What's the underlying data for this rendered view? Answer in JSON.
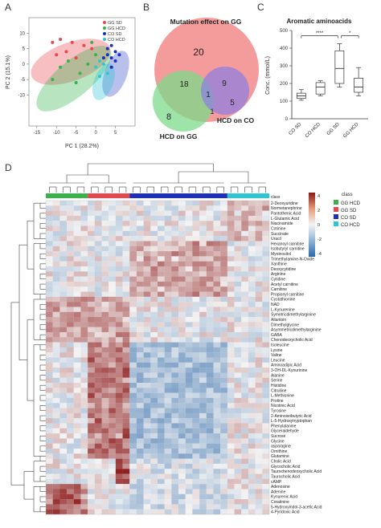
{
  "figure": {
    "panel_labels": [
      "A",
      "B",
      "C",
      "D"
    ]
  },
  "colors": {
    "gg_sd": "#e8484d",
    "gg_hcd": "#37b34a",
    "co_sd": "#1c2fbf",
    "co_hcd": "#2cc7d3",
    "venn_gg": "#f28a8a",
    "venn_hcd_gg": "#7ed98a",
    "venn_hcd_co": "#8a7de6",
    "heat_low": "#2d68a8",
    "heat_mid": "#f4f4f4",
    "heat_high": "#8c1717",
    "box_stroke": "#333333"
  },
  "chart_data": [
    {
      "type": "scatter",
      "panel": "A",
      "xlabel": "PC 1 (28.2%)",
      "ylabel": "PC 2 (15.1%)",
      "xlim": [
        -17,
        10
      ],
      "ylim": [
        -20,
        15
      ],
      "x_ticks": [
        "-15",
        "-10",
        "-5",
        "0",
        "5"
      ],
      "y_ticks": [
        "-10",
        "-5",
        "0",
        "5",
        "10"
      ],
      "legend": [
        "GG SD",
        "GG HCD",
        "CO SD",
        "CO HCD"
      ],
      "legend_position": "top-right",
      "series": [
        {
          "name": "GG SD",
          "points": [
            [
              -11,
              7
            ],
            [
              -9,
              8
            ],
            [
              -7.5,
              4
            ],
            [
              -5,
              2
            ],
            [
              -3,
              6
            ],
            [
              -1,
              5
            ],
            [
              -10,
              3
            ],
            [
              -6,
              7
            ]
          ]
        },
        {
          "name": "GG HCD",
          "points": [
            [
              -11,
              -5
            ],
            [
              -9,
              -1
            ],
            [
              -7,
              1
            ],
            [
              -4,
              -3
            ],
            [
              -1,
              7
            ],
            [
              0,
              3
            ],
            [
              -5,
              -6
            ],
            [
              -2,
              0
            ]
          ]
        },
        {
          "name": "CO SD",
          "points": [
            [
              3,
              5
            ],
            [
              4,
              6
            ],
            [
              5,
              4
            ],
            [
              4,
              2
            ],
            [
              5,
              1
            ],
            [
              3,
              3
            ],
            [
              6,
              3
            ],
            [
              4,
              -1
            ],
            [
              2,
              2
            ]
          ]
        },
        {
          "name": "CO HCD",
          "points": [
            [
              0,
              -1
            ],
            [
              1,
              -4
            ],
            [
              2,
              0
            ],
            [
              3,
              -3
            ],
            [
              1,
              1
            ]
          ]
        }
      ]
    },
    {
      "type": "venn",
      "panel": "B",
      "sets": [
        {
          "name": "Mutation effect on GG",
          "only": "20"
        },
        {
          "name": "HCD on GG",
          "only": "8"
        },
        {
          "name": "HCD on CO",
          "only": "5"
        }
      ],
      "regions": {
        "gg_and_hcd_gg": "18",
        "gg_and_hcd_co": "9",
        "all_three": "1",
        "hcd_gg_and_hcd_co": "1"
      }
    },
    {
      "type": "box",
      "panel": "C",
      "title": "Aromatic aminoacids",
      "ylabel": "Conc. (mmol/L)",
      "ylim": [
        0,
        500
      ],
      "y_ticks": [
        "0",
        "100",
        "200",
        "300",
        "400",
        "500"
      ],
      "categories": [
        "CO SD",
        "CO HCD",
        "GG SD",
        "GG HCD"
      ],
      "boxes": [
        {
          "name": "CO SD",
          "min": 105,
          "q1": 115,
          "median": 130,
          "q3": 145,
          "max": 165
        },
        {
          "name": "CO HCD",
          "min": 130,
          "q1": 140,
          "median": 180,
          "q3": 205,
          "max": 215
        },
        {
          "name": "GG SD",
          "min": 180,
          "q1": 200,
          "median": 285,
          "q3": 385,
          "max": 425
        },
        {
          "name": "GG HCD",
          "min": 130,
          "q1": 150,
          "median": 180,
          "q3": 230,
          "max": 290
        }
      ],
      "significance": [
        {
          "from": "CO SD",
          "to": "GG SD",
          "label": "****"
        },
        {
          "from": "GG SD",
          "to": "GG HCD",
          "label": "*"
        }
      ]
    },
    {
      "type": "heatmap",
      "panel": "D",
      "class_label": "class",
      "legend": [
        "GG HCD",
        "GG SD",
        "CO SD",
        "CO HCD"
      ],
      "scale_ticks": [
        "4",
        "2",
        "0",
        "-2",
        "-4"
      ],
      "column_groups": [
        {
          "name": "GG HCD",
          "count": 6
        },
        {
          "name": "GG SD",
          "count": 6
        },
        {
          "name": "CO SD",
          "count": 14
        },
        {
          "name": "CO HCD",
          "count": 6
        }
      ],
      "rows": [
        "2-Deoxyuridine",
        "Normetanephrine",
        "Pantothenic Acid",
        "L-Glutamic Acid",
        "Niacinamide",
        "Cotinine",
        "Succinate",
        "Uracil",
        "Hexanoyl carnitine",
        "Isobutyryl carnitine",
        "Myoinositol",
        "Trimethylamine-N-Oxide",
        "Xanthine",
        "Deoxycytidine",
        "Arginine",
        "Cytidine",
        "Acetyl carnitine",
        "Carnitine",
        "Propionyl carnitine",
        "Cystathionine",
        "NAD",
        "L-Kynurenine",
        "Symetricdimethylarginine",
        "Allantoin",
        "Dimethylglycine",
        "Asymmetricdimethylarginine",
        "GABA",
        "Chenodeoxycholic Acid",
        "Isoleucine",
        "Lysine",
        "Valine",
        "Leucine",
        "Aminoadipic Acid",
        "3-OH-DL-Kynurinine",
        "Alanine",
        "Serine",
        "Histidine",
        "Citrulline",
        "L-Methionine",
        "Proline",
        "Nicotinic Acid",
        "Tyrosine",
        "2-Aminoisobutyric Acid",
        "L-5-Hydroxytryptophan",
        "Phenylalanine",
        "Glyceraldehyde",
        "Sucrose",
        "Glycine",
        "asparagine",
        "Ornithine",
        "Glutamine",
        "Cholic Acid",
        "Glycocholic Acid",
        "Taurochenodeoxycholic Acid",
        "Taurocholic Acid",
        "cAMP",
        "Adenosine",
        "Adenine",
        "Kynurenic Acid",
        "Creatinine",
        "5-Hydroxyindol-3-acetic Acid",
        "4-Pyridoxic Acid"
      ]
    }
  ]
}
